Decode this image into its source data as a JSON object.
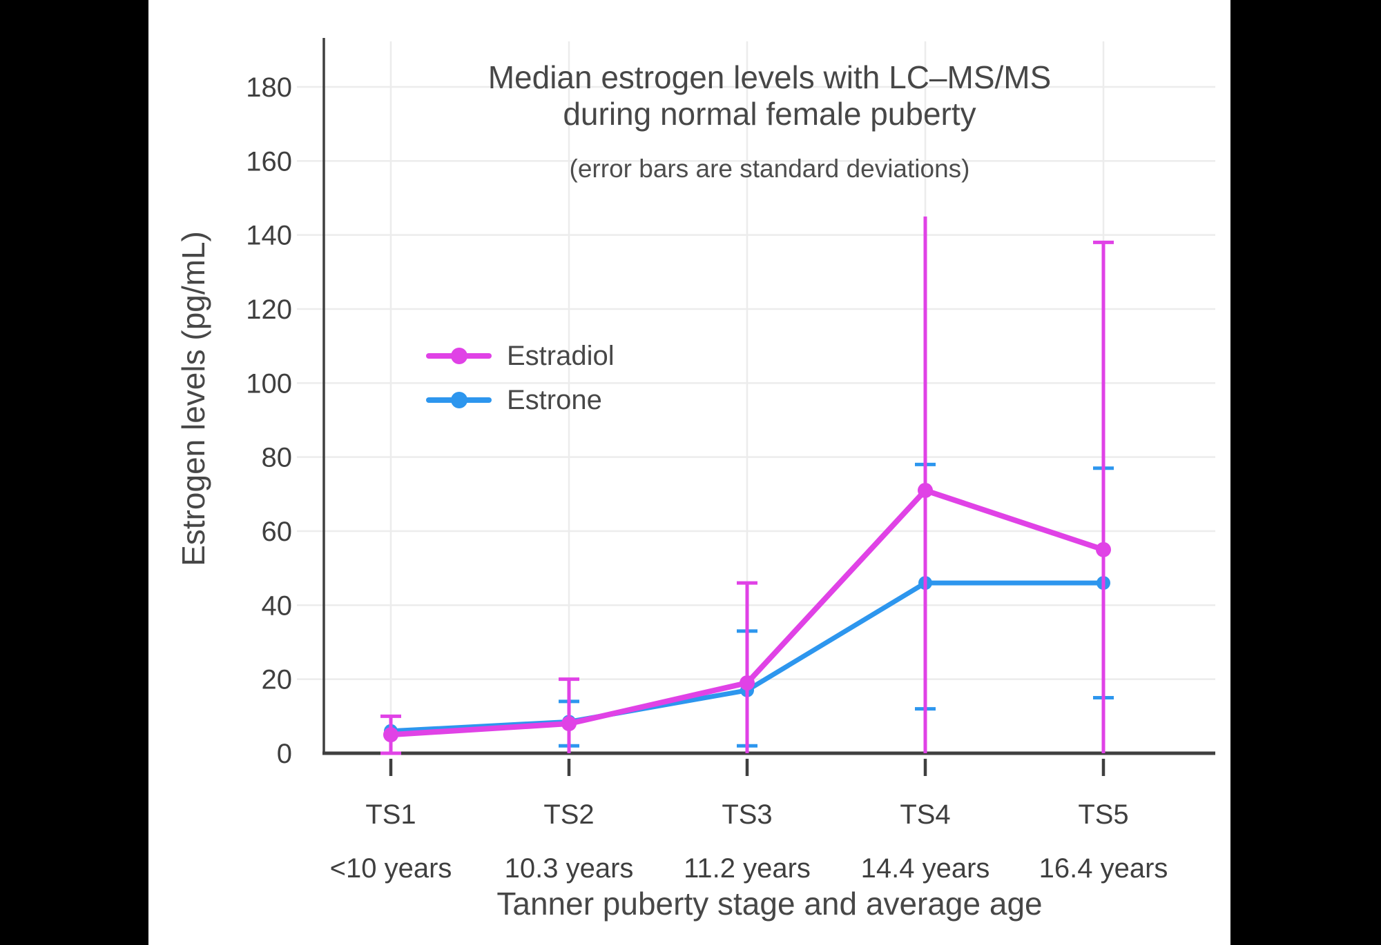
{
  "panel": {
    "outer_bg": "#000000",
    "bg": "#ffffff"
  },
  "chart_data": {
    "type": "line",
    "title_lines": [
      "Median estrogen levels with LC–MS/MS",
      "during normal female puberty"
    ],
    "subtitle": "(error bars are standard deviations)",
    "xlabel": "Tanner puberty stage and average age",
    "ylabel": "Estrogen levels (pg/mL)",
    "categories": [
      {
        "stage": "TS1",
        "age": "<10 years"
      },
      {
        "stage": "TS2",
        "age": "10.3 years"
      },
      {
        "stage": "TS3",
        "age": "11.2 years"
      },
      {
        "stage": "TS4",
        "age": "14.4 years"
      },
      {
        "stage": "TS5",
        "age": "16.4 years"
      }
    ],
    "ylim": [
      0,
      191
    ],
    "yticks": [
      0,
      20,
      40,
      60,
      80,
      100,
      120,
      140,
      160,
      180
    ],
    "grid": true,
    "legend_position": "inside-left",
    "colors": {
      "grid": "#ECECEC",
      "axis": "#3F3F3F",
      "tick_text": "#3F3F3F"
    },
    "series": [
      {
        "name": "Estradiol",
        "color": "#E042E6",
        "line_width": 8,
        "marker_radius": 11,
        "values": [
          5,
          8,
          19,
          71,
          55
        ],
        "error_high": [
          10,
          20,
          46,
          145,
          138
        ],
        "error_low": [
          0,
          0,
          0,
          0,
          0
        ],
        "error_high_cap": [
          true,
          true,
          true,
          false,
          true
        ],
        "error_low_cap": [
          true,
          false,
          false,
          false,
          false
        ]
      },
      {
        "name": "Estrone",
        "color": "#2D96EE",
        "line_width": 7,
        "marker_radius": 10,
        "values": [
          6,
          8.5,
          17,
          46,
          46
        ],
        "error_high": [
          null,
          14,
          33,
          78,
          77
        ],
        "error_low": [
          null,
          2,
          2,
          12,
          15
        ],
        "error_high_cap": [
          false,
          true,
          true,
          true,
          true
        ],
        "error_low_cap": [
          false,
          true,
          true,
          true,
          true
        ]
      }
    ]
  }
}
